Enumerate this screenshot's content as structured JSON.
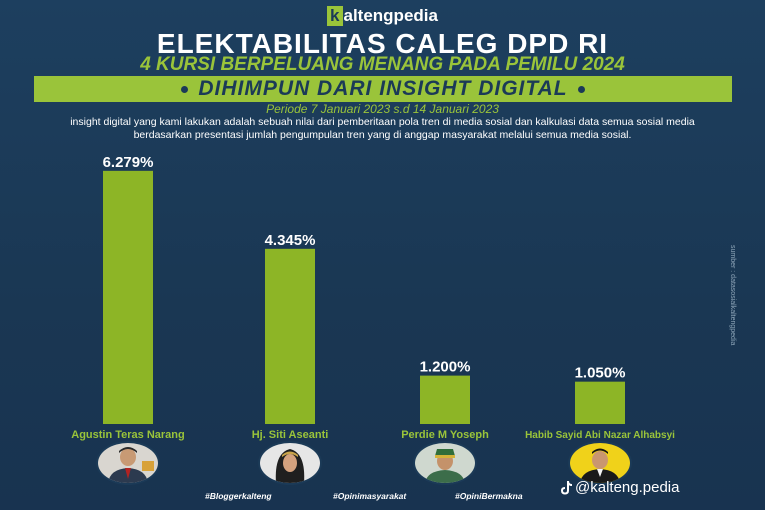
{
  "brand": {
    "logo_letter": "k",
    "name": "altengpedia"
  },
  "header": {
    "title": "ELEKTABILITAS CALEG DPD RI",
    "subtitle": "4 KURSI BERPELUANG MENANG PADA PEMILU 2024",
    "banner": "DIHIMPUN DARI INSIGHT DIGITAL",
    "period": "Periode 7 Januari 2023 s.d 14 Januari 2023",
    "description": "insight digital yang kami lakukan adalah sebuah nilai dari pemberitaan pola tren di media sosial dan kalkulasi data semua sosial media berdasarkan presentasi jumlah pengumpulan tren yang di anggap masyarakat melalui semua media sosial."
  },
  "source_note": "sumber : datasosialkaltengpedia",
  "colors": {
    "background": "#1b3a57",
    "accent": "#9ac43a",
    "bar": "#8db526",
    "text": "#ffffff"
  },
  "chart_data": {
    "type": "bar",
    "categories": [
      "Agustin Teras Narang",
      "Hj. Siti Aseanti",
      "Perdie M Yoseph",
      "Habib Sayid Abi Nazar Alhabsyi"
    ],
    "values": [
      6.279,
      4.345,
      1.2,
      1.05
    ],
    "value_labels": [
      "6.279%",
      "4.345%",
      "1.200%",
      "1.050%"
    ],
    "title": "ELEKTABILITAS CALEG DPD RI",
    "xlabel": "",
    "ylabel": "",
    "ylim": [
      0,
      6.3
    ],
    "grid": false
  },
  "candidates": [
    {
      "name": "Agustin Teras Narang",
      "photo": "portrait-man-avatar"
    },
    {
      "name": "Hj. Siti Aseanti",
      "photo": "portrait-woman-avatar"
    },
    {
      "name": "Perdie M Yoseph",
      "photo": "portrait-man-cap-avatar"
    },
    {
      "name": "Habib Sayid Abi Nazar Alhabsyi",
      "photo": "portrait-man-yellow-avatar"
    }
  ],
  "hashtags": [
    "#Bloggerkalteng",
    "#Opinimasyarakat",
    "#OpiniBermakna"
  ],
  "social": {
    "icon": "tiktok-icon",
    "handle": "@kalteng.pedia"
  }
}
